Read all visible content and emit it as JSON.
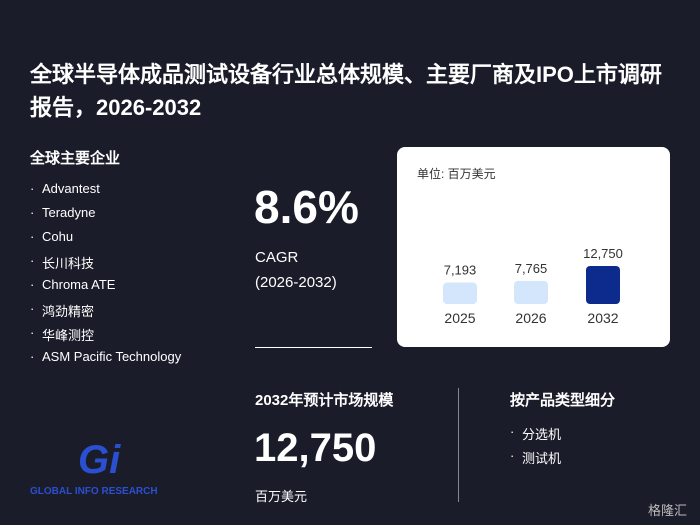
{
  "header": {
    "title": "全球半导体成品测试设备行业总体规模、主要厂商及IPO上市调研报告，2026-2032"
  },
  "companies": {
    "heading": "全球主要企业",
    "items": [
      "Advantest",
      "Teradyne",
      "Cohu",
      "长川科技",
      "Chroma ATE",
      "鸿劲精密",
      "华峰测控",
      "ASM Pacific Technology"
    ]
  },
  "cagr": {
    "value": "8.6%",
    "label": "CAGR",
    "period": "(2026-2032)"
  },
  "market": {
    "heading": "2032年预计市场规模",
    "value": "12,750",
    "unit": "百万美元"
  },
  "segments": {
    "heading": "按产品类型细分",
    "items": [
      "分选机",
      "测试机"
    ]
  },
  "logo": {
    "mark": "Gi",
    "text": "GLOBAL INFO RESEARCH"
  },
  "watermark": "格隆汇",
  "chart_data": {
    "type": "bar",
    "unit_label": "单位: 百万美元",
    "categories": [
      "2025",
      "2026",
      "2032"
    ],
    "values": [
      7193,
      7765,
      12750
    ],
    "value_labels": [
      "7,193",
      "7,765",
      "12,750"
    ],
    "colors": [
      "#d3e6fb",
      "#d3e6fb",
      "#0d2b8c"
    ]
  }
}
